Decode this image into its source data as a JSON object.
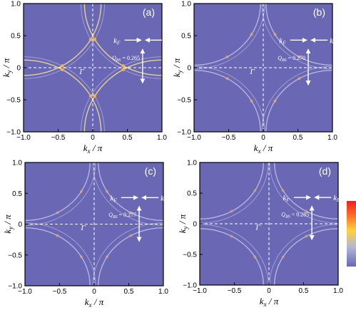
{
  "chart_data": [
    {
      "type": "heatmap",
      "panel_label": "(a)",
      "xlabel": "k_x / π",
      "ylabel": "k_y / π",
      "xlim": [
        -1.0,
        1.0
      ],
      "ylim": [
        -1.0,
        1.0
      ],
      "x_ticks": [
        "-1.0",
        "-0.5",
        "0",
        "0.5",
        "1.0"
      ],
      "y_ticks": [
        "-1.0",
        "-0.5",
        "0",
        "0.5",
        "1.0"
      ],
      "center_label": "Γ",
      "kF_label": "k_F",
      "kBS_label": "k_BS",
      "Q_label": "Q_BS = 0.265",
      "Q_value": 0.265,
      "arrow_kx": 0.72,
      "arrow_ky_from": 0.35,
      "arrow_ky_to": -0.24,
      "grid": false
    },
    {
      "type": "heatmap",
      "panel_label": "(b)",
      "xlabel": "k_x / π",
      "ylabel": "k_y / π",
      "xlim": [
        -1.0,
        1.0
      ],
      "ylim": [
        -1.0,
        1.0
      ],
      "x_ticks": [
        "-1.0",
        "-0.5",
        "0",
        "0.5",
        "1.0"
      ],
      "y_ticks": [
        "-1.0",
        "-0.5",
        "0",
        "0.5",
        "1.0"
      ],
      "center_label": "Γ",
      "kF_label": "k_F",
      "kBS_label": "k_BS",
      "Q_label": "Q_BS = 0.270",
      "Q_value": 0.27,
      "arrow_kx": 0.65,
      "arrow_ky_from": 0.35,
      "arrow_ky_to": -0.27,
      "grid": false
    },
    {
      "type": "heatmap",
      "panel_label": "(c)",
      "xlabel": "k_x / π",
      "ylabel": "k_y / π",
      "xlim": [
        -1.0,
        1.0
      ],
      "ylim": [
        -1.0,
        1.0
      ],
      "x_ticks": [
        "-1.0",
        "-0.5",
        "0",
        "0.5",
        "1.0"
      ],
      "y_ticks": [
        "-1.0",
        "-0.5",
        "0",
        "0.5",
        "1.0"
      ],
      "center_label": "Γ",
      "kF_label": "k_F",
      "kBS_label": "k_BS",
      "Q_label": "Q_BS = 0.277",
      "Q_value": 0.277,
      "arrow_kx": 0.65,
      "arrow_ky_from": 0.35,
      "arrow_ky_to": -0.28,
      "grid": false
    },
    {
      "type": "heatmap",
      "panel_label": "(d)",
      "xlabel": "k_x / π",
      "ylabel": "k_y / π",
      "xlim": [
        -1.0,
        1.0
      ],
      "ylim": [
        -1.0,
        1.0
      ],
      "x_ticks": [
        "-1.0",
        "-0.5",
        "0",
        "0.5",
        "1.0"
      ],
      "y_ticks": [
        "-1.0",
        "-0.5",
        "0",
        "0.5",
        "1.0"
      ],
      "center_label": "Γ",
      "kF_label": "k_F",
      "kBS_label": "k_BS",
      "Q_label": "Q_BS = 0.285",
      "Q_value": 0.285,
      "arrow_kx": 0.62,
      "arrow_ky_from": 0.35,
      "arrow_ky_to": -0.26,
      "grid": false
    }
  ],
  "colors": {
    "background": "#6a68b5",
    "contour": "#b9b7e2",
    "hot": "#ffb03a",
    "arrow": "#ffffff",
    "colorbar": [
      "#ee1f1f",
      "#ff7a2a",
      "#ffd23a",
      "#b3b7d8",
      "#6a68b5"
    ]
  }
}
